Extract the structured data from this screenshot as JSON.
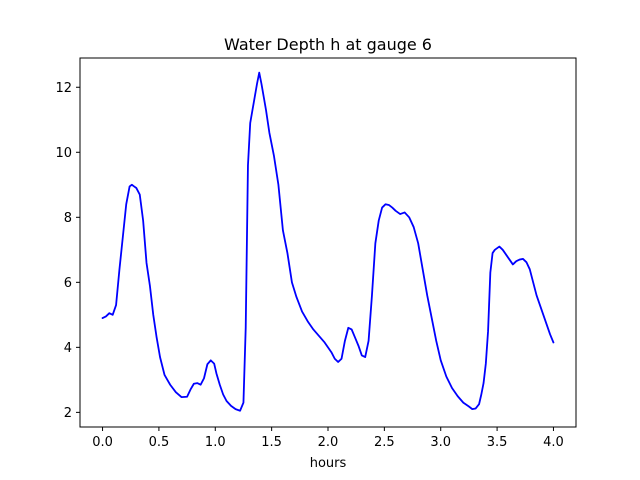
{
  "chart_data": {
    "type": "line",
    "title": "Water Depth h at gauge 6",
    "xlabel": "hours",
    "ylabel": "",
    "xlim": [
      -0.2,
      4.2
    ],
    "ylim": [
      1.55,
      12.9
    ],
    "x_ticks": [
      0.0,
      0.5,
      1.0,
      1.5,
      2.0,
      2.5,
      3.0,
      3.5,
      4.0
    ],
    "x_tick_labels": [
      "0.0",
      "0.5",
      "1.0",
      "1.5",
      "2.0",
      "2.5",
      "3.0",
      "3.5",
      "4.0"
    ],
    "y_ticks": [
      2,
      4,
      6,
      8,
      10,
      12
    ],
    "y_tick_labels": [
      "2",
      "4",
      "6",
      "8",
      "10",
      "12"
    ],
    "grid": false,
    "legend": "none",
    "series": [
      {
        "color": "#0000ff",
        "x": [
          0.0,
          0.03,
          0.06,
          0.09,
          0.12,
          0.15,
          0.18,
          0.21,
          0.24,
          0.26,
          0.28,
          0.3,
          0.33,
          0.36,
          0.39,
          0.42,
          0.45,
          0.48,
          0.51,
          0.55,
          0.6,
          0.65,
          0.7,
          0.75,
          0.78,
          0.81,
          0.84,
          0.87,
          0.9,
          0.93,
          0.96,
          0.99,
          1.01,
          1.04,
          1.07,
          1.1,
          1.14,
          1.18,
          1.22,
          1.25,
          1.27,
          1.29,
          1.31,
          1.33,
          1.35,
          1.37,
          1.39,
          1.41,
          1.43,
          1.45,
          1.48,
          1.52,
          1.56,
          1.6,
          1.64,
          1.68,
          1.72,
          1.77,
          1.82,
          1.87,
          1.92,
          1.97,
          2.0,
          2.03,
          2.06,
          2.09,
          2.12,
          2.15,
          2.18,
          2.21,
          2.24,
          2.27,
          2.3,
          2.33,
          2.36,
          2.39,
          2.42,
          2.45,
          2.48,
          2.51,
          2.54,
          2.57,
          2.6,
          2.64,
          2.68,
          2.72,
          2.76,
          2.8,
          2.84,
          2.88,
          2.92,
          2.96,
          3.0,
          3.05,
          3.1,
          3.15,
          3.2,
          3.25,
          3.28,
          3.31,
          3.34,
          3.36,
          3.38,
          3.4,
          3.42,
          3.44,
          3.46,
          3.48,
          3.5,
          3.52,
          3.55,
          3.58,
          3.61,
          3.64,
          3.67,
          3.7,
          3.73,
          3.76,
          3.79,
          3.82,
          3.85,
          3.88,
          3.91,
          3.94,
          3.97,
          4.0
        ],
        "y": [
          4.9,
          4.95,
          5.05,
          5.0,
          5.3,
          6.4,
          7.4,
          8.4,
          8.95,
          9.0,
          8.95,
          8.9,
          8.7,
          7.9,
          6.6,
          5.9,
          5.0,
          4.3,
          3.7,
          3.15,
          2.85,
          2.62,
          2.47,
          2.48,
          2.7,
          2.88,
          2.9,
          2.85,
          3.05,
          3.48,
          3.6,
          3.5,
          3.2,
          2.85,
          2.55,
          2.35,
          2.2,
          2.1,
          2.05,
          2.3,
          4.6,
          9.6,
          10.9,
          11.3,
          11.7,
          12.1,
          12.45,
          12.1,
          11.7,
          11.3,
          10.6,
          9.9,
          9.0,
          7.6,
          6.9,
          6.0,
          5.55,
          5.1,
          4.8,
          4.55,
          4.35,
          4.15,
          4.0,
          3.85,
          3.65,
          3.55,
          3.65,
          4.2,
          4.6,
          4.55,
          4.3,
          4.05,
          3.75,
          3.7,
          4.2,
          5.6,
          7.2,
          7.9,
          8.3,
          8.4,
          8.38,
          8.3,
          8.2,
          8.1,
          8.15,
          8.0,
          7.7,
          7.2,
          6.4,
          5.6,
          4.9,
          4.2,
          3.6,
          3.1,
          2.75,
          2.5,
          2.3,
          2.18,
          2.1,
          2.12,
          2.25,
          2.55,
          2.9,
          3.5,
          4.5,
          6.3,
          6.9,
          7.0,
          7.05,
          7.1,
          7.0,
          6.85,
          6.7,
          6.55,
          6.65,
          6.7,
          6.72,
          6.62,
          6.4,
          6.0,
          5.6,
          5.3,
          5.0,
          4.7,
          4.4,
          4.15
        ]
      }
    ]
  }
}
